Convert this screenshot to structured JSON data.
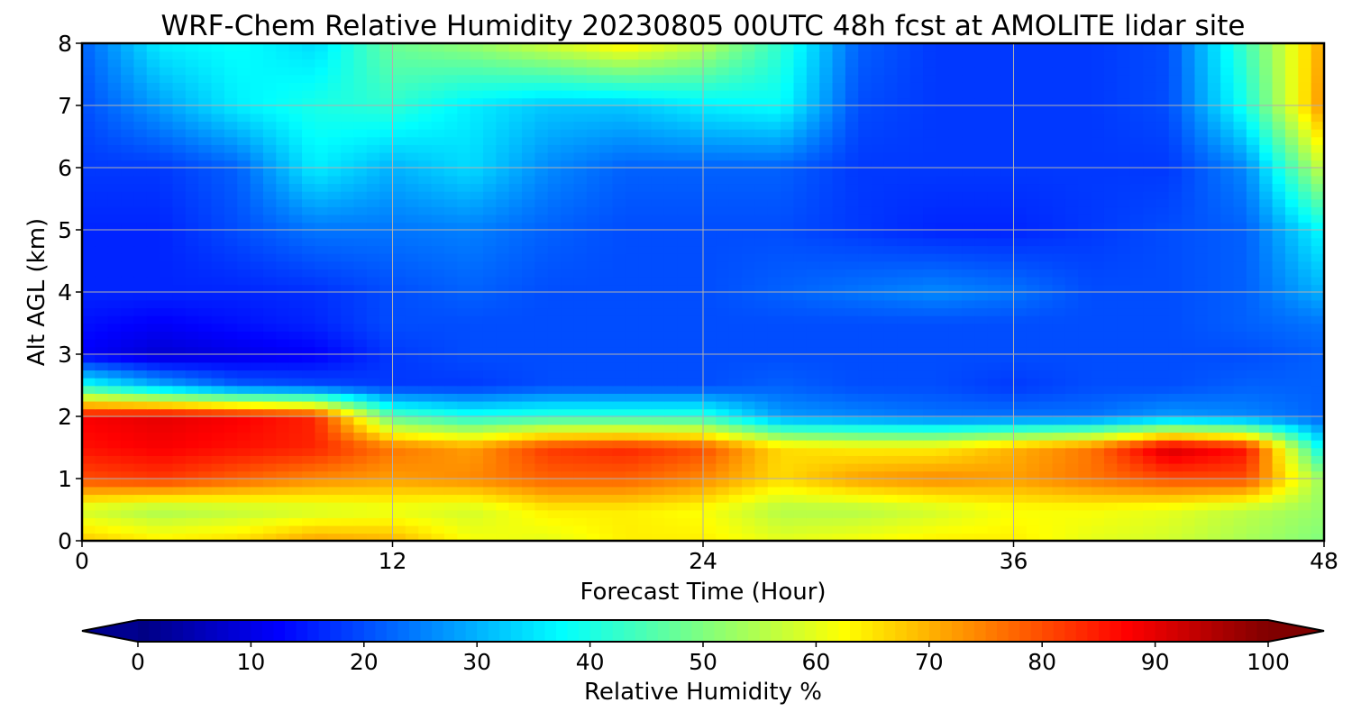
{
  "chart_data": {
    "type": "heatmap",
    "title": "WRF-Chem Relative Humidity 20230805 00UTC 48h fcst at AMOLITE lidar site",
    "xlabel": "Forecast Time (Hour)",
    "ylabel": "Alt AGL (km)",
    "xlim": [
      0,
      48
    ],
    "ylim": [
      0,
      8
    ],
    "xticks": [
      0,
      12,
      24,
      36,
      48
    ],
    "yticks": [
      0,
      1,
      2,
      3,
      4,
      5,
      6,
      7,
      8
    ],
    "grid": true,
    "colormap": "jet",
    "colorbar": {
      "label": "Relative Humidity %",
      "orientation": "horizontal",
      "placement": "bottom",
      "range": [
        0,
        100
      ],
      "ticks": [
        0,
        10,
        20,
        30,
        40,
        50,
        60,
        70,
        80,
        90,
        100
      ],
      "extend": "both",
      "under_color": "#00008f",
      "over_color": "#800000"
    },
    "x": [
      0,
      3,
      6,
      9,
      12,
      15,
      18,
      21,
      24,
      27,
      30,
      33,
      36,
      39,
      42,
      45,
      48
    ],
    "y": [
      0,
      0.5,
      1,
      1.5,
      2,
      2.5,
      3,
      3.5,
      4,
      5,
      6,
      7,
      8
    ],
    "z": [
      [
        68,
        64,
        66,
        72,
        70,
        62,
        60,
        64,
        64,
        60,
        62,
        64,
        64,
        60,
        58,
        54,
        50
      ],
      [
        58,
        54,
        56,
        58,
        60,
        58,
        64,
        64,
        62,
        55,
        55,
        58,
        62,
        62,
        60,
        56,
        52
      ],
      [
        80,
        82,
        78,
        74,
        72,
        74,
        78,
        78,
        74,
        66,
        72,
        74,
        72,
        76,
        80,
        80,
        52
      ],
      [
        86,
        88,
        86,
        84,
        76,
        72,
        82,
        84,
        80,
        66,
        64,
        64,
        70,
        76,
        92,
        86,
        36
      ],
      [
        88,
        90,
        88,
        84,
        46,
        40,
        42,
        42,
        42,
        28,
        26,
        24,
        24,
        24,
        28,
        26,
        22
      ],
      [
        40,
        30,
        22,
        20,
        18,
        18,
        20,
        20,
        20,
        22,
        20,
        20,
        18,
        20,
        20,
        22,
        22
      ],
      [
        12,
        8,
        10,
        12,
        18,
        20,
        20,
        20,
        20,
        20,
        20,
        20,
        20,
        20,
        20,
        20,
        22
      ],
      [
        14,
        12,
        14,
        16,
        20,
        20,
        20,
        20,
        20,
        20,
        20,
        20,
        20,
        20,
        20,
        22,
        24
      ],
      [
        16,
        16,
        16,
        17,
        20,
        22,
        20,
        20,
        20,
        22,
        24,
        26,
        24,
        20,
        20,
        22,
        30
      ],
      [
        16,
        16,
        20,
        24,
        24,
        25,
        22,
        20,
        20,
        20,
        18,
        16,
        16,
        18,
        20,
        22,
        38
      ],
      [
        18,
        18,
        22,
        36,
        30,
        34,
        26,
        22,
        22,
        22,
        18,
        18,
        18,
        18,
        18,
        26,
        58
      ],
      [
        20,
        28,
        36,
        40,
        42,
        36,
        32,
        32,
        36,
        38,
        20,
        18,
        18,
        18,
        20,
        40,
        74
      ],
      [
        22,
        36,
        38,
        34,
        48,
        52,
        58,
        64,
        56,
        42,
        22,
        18,
        18,
        18,
        20,
        44,
        72
      ]
    ]
  }
}
